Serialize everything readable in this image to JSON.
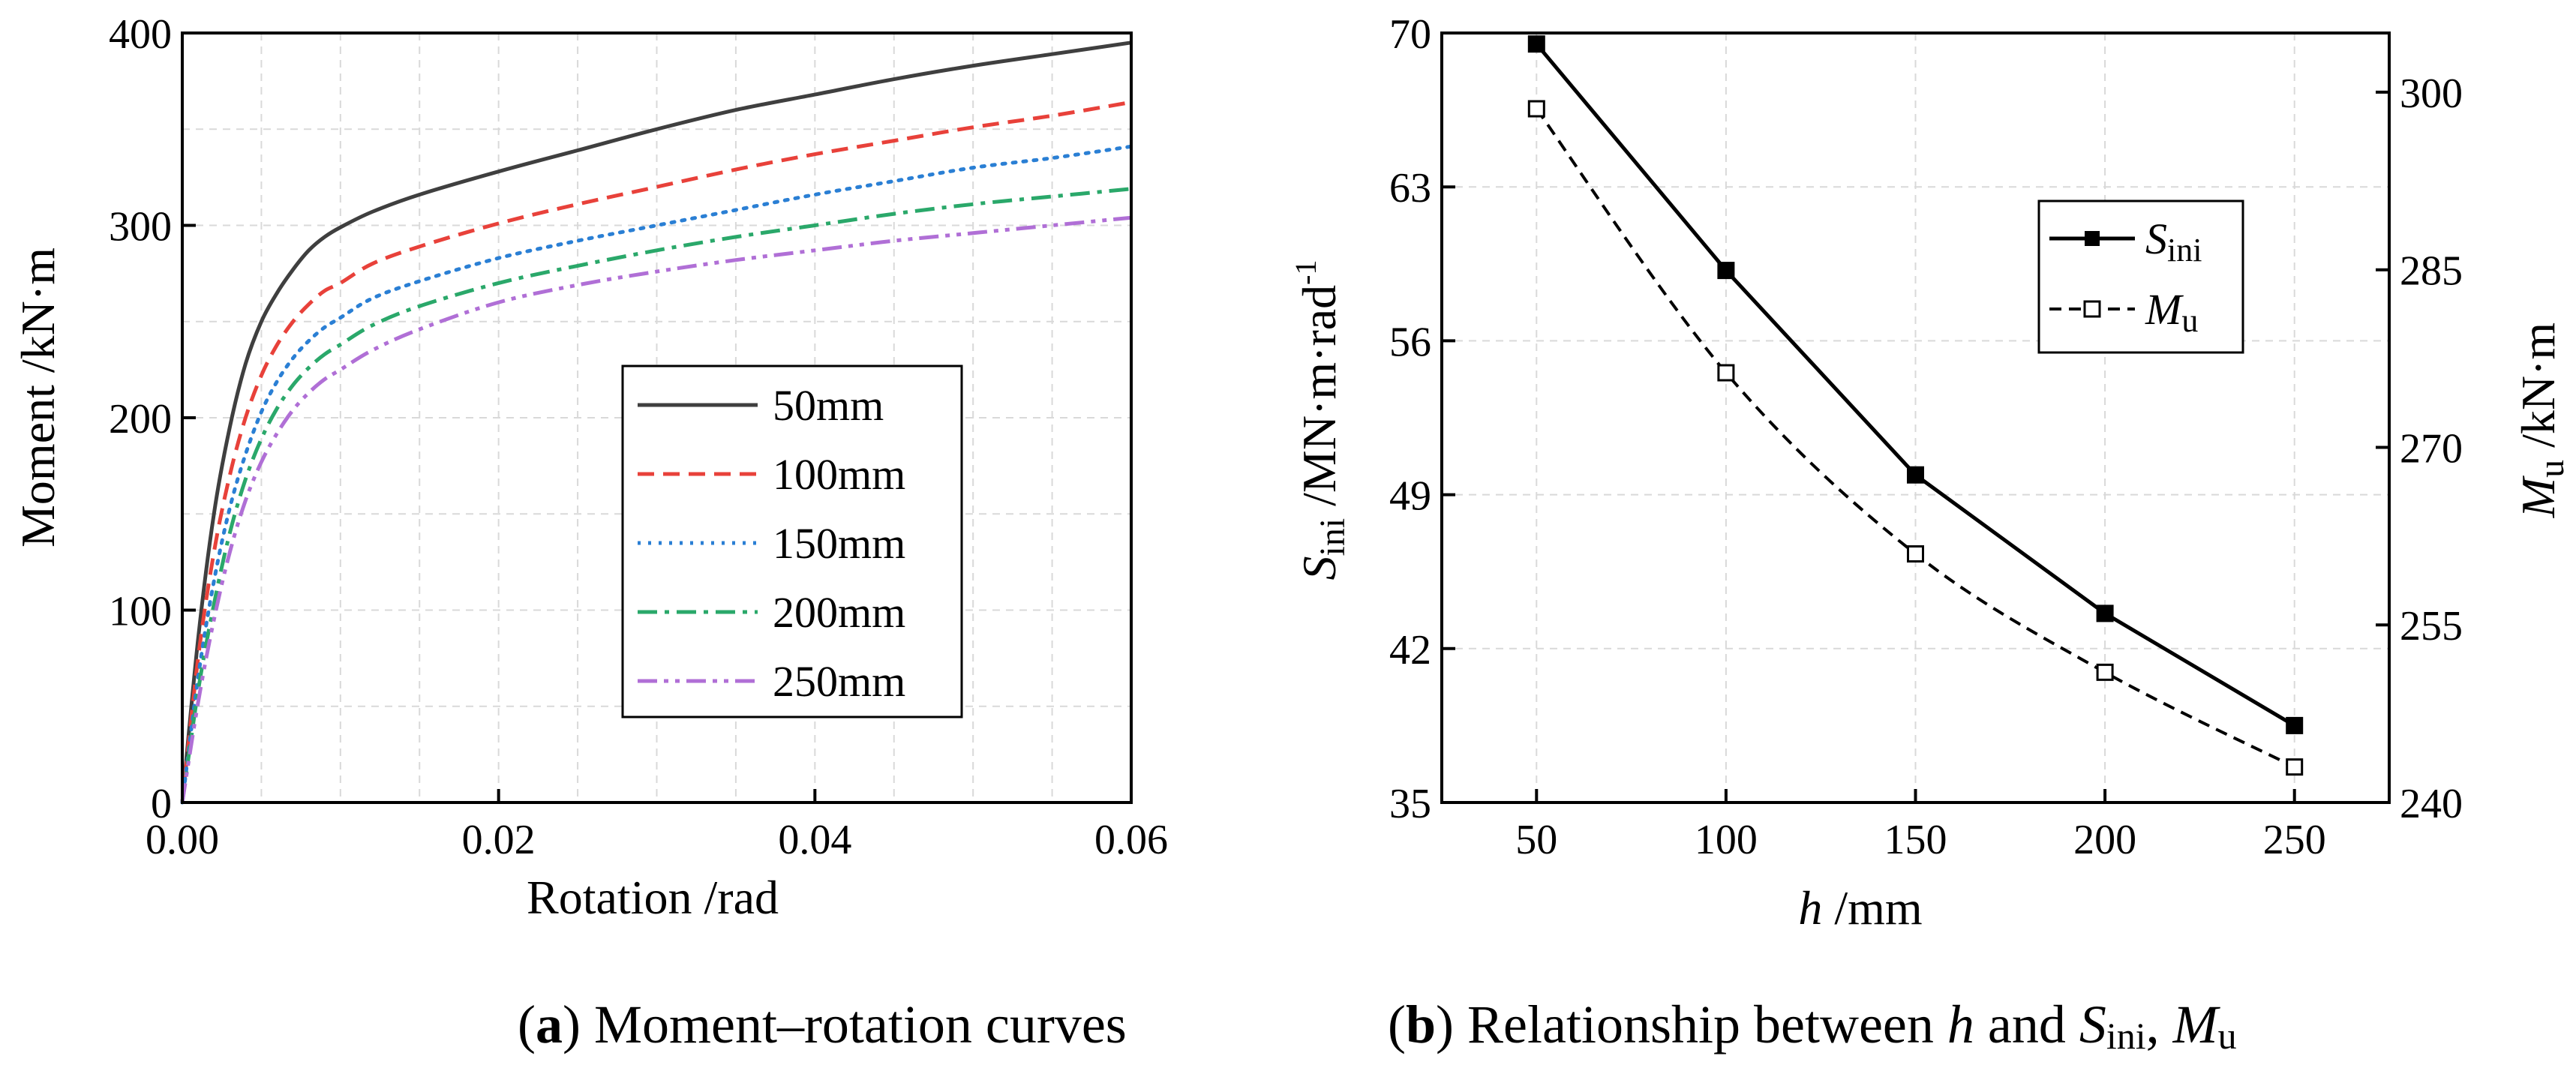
{
  "chart_data": [
    {
      "type": "line",
      "panel_label": "a",
      "caption": "Moment–rotation curves",
      "xlabel": "Rotation /rad",
      "ylabel": "Moment /kN·m",
      "xlim": [
        0,
        0.06
      ],
      "ylim": [
        0,
        400
      ],
      "xticks": [
        "0.00",
        "0.02",
        "0.04",
        "0.06"
      ],
      "yticks": [
        "0",
        "100",
        "200",
        "300",
        "400"
      ],
      "grid": true,
      "legend_position": "center-right",
      "series": [
        {
          "name": "50mm",
          "color": "#3f3f3f",
          "dash": "solid",
          "x": [
            0,
            0.001,
            0.002,
            0.003,
            0.004,
            0.005,
            0.006,
            0.007,
            0.008,
            0.009,
            0.01,
            0.012,
            0.015,
            0.02,
            0.025,
            0.03,
            0.035,
            0.04,
            0.045,
            0.05,
            0.055,
            0.06
          ],
          "y": [
            0,
            85,
            150,
            195,
            228,
            250,
            265,
            277,
            287,
            294,
            299,
            307,
            316,
            328,
            339,
            350,
            360,
            368,
            376,
            383,
            389,
            395
          ]
        },
        {
          "name": "100mm",
          "color": "#e8413a",
          "dash": "dashed",
          "x": [
            0,
            0.001,
            0.002,
            0.003,
            0.004,
            0.005,
            0.006,
            0.007,
            0.008,
            0.009,
            0.01,
            0.012,
            0.015,
            0.02,
            0.025,
            0.03,
            0.035,
            0.04,
            0.045,
            0.05,
            0.055,
            0.06
          ],
          "y": [
            0,
            75,
            130,
            170,
            200,
            222,
            238,
            250,
            259,
            266,
            270,
            280,
            289,
            301,
            311,
            320,
            329,
            337,
            344,
            351,
            357,
            364
          ]
        },
        {
          "name": "150mm",
          "color": "#2a7fd4",
          "dash": "dotted",
          "x": [
            0,
            0.001,
            0.002,
            0.003,
            0.004,
            0.005,
            0.006,
            0.007,
            0.008,
            0.009,
            0.01,
            0.012,
            0.015,
            0.02,
            0.025,
            0.03,
            0.035,
            0.04,
            0.045,
            0.05,
            0.055,
            0.06
          ],
          "y": [
            0,
            65,
            115,
            153,
            181,
            203,
            219,
            231,
            240,
            247,
            252,
            262,
            271,
            283,
            292,
            300,
            308,
            316,
            323,
            330,
            335,
            341
          ]
        },
        {
          "name": "200mm",
          "color": "#2aa86a",
          "dash": "dashdot",
          "x": [
            0,
            0.001,
            0.002,
            0.003,
            0.004,
            0.005,
            0.006,
            0.007,
            0.008,
            0.009,
            0.01,
            0.012,
            0.015,
            0.02,
            0.025,
            0.03,
            0.035,
            0.04,
            0.045,
            0.05,
            0.055,
            0.06
          ],
          "y": [
            0,
            58,
            103,
            140,
            168,
            189,
            205,
            217,
            226,
            233,
            238,
            248,
            258,
            270,
            279,
            287,
            294,
            300,
            306,
            311,
            315,
            319
          ]
        },
        {
          "name": "250mm",
          "color": "#b06fd6",
          "dash": "dashdotdot",
          "x": [
            0,
            0.001,
            0.002,
            0.003,
            0.004,
            0.005,
            0.006,
            0.007,
            0.008,
            0.009,
            0.01,
            0.012,
            0.015,
            0.02,
            0.025,
            0.03,
            0.035,
            0.04,
            0.045,
            0.05,
            0.055,
            0.06
          ],
          "y": [
            0,
            52,
            95,
            130,
            157,
            177,
            192,
            204,
            213,
            220,
            225,
            235,
            246,
            260,
            269,
            276,
            282,
            287,
            292,
            296,
            300,
            304
          ]
        }
      ]
    },
    {
      "type": "line",
      "panel_label": "b",
      "caption_prefix": "Relationship between",
      "caption_h": "h",
      "caption_and": "and",
      "caption_s": "S",
      "caption_s_sub": "ini",
      "caption_sep": ",",
      "caption_m": "M",
      "caption_m_sub": "u",
      "xlabel_italic": "h",
      "xlabel_unit": "/mm",
      "ylabel_left_main": "S",
      "ylabel_left_sub": "ini",
      "ylabel_left_unit": "/MN·m·rad",
      "ylabel_left_sup": "-1",
      "ylabel_right_main": "M",
      "ylabel_right_sub": "u",
      "ylabel_right_unit": "/kN·m",
      "x": [
        50,
        100,
        150,
        200,
        250
      ],
      "xlim": [
        25,
        275
      ],
      "xticks": [
        "50",
        "100",
        "150",
        "200",
        "250"
      ],
      "ylim_left": [
        35,
        70
      ],
      "yticks_left": [
        "35",
        "42",
        "49",
        "56",
        "63",
        "70"
      ],
      "ylim_right": [
        240,
        305
      ],
      "yticks_right": [
        "240",
        "255",
        "270",
        "285",
        "300"
      ],
      "grid": true,
      "legend_position": "top-right",
      "series": [
        {
          "name_main": "S",
          "name_sub": "ini",
          "axis": "left",
          "dash": "solid",
          "marker": "filled-square",
          "values": [
            69.5,
            59.2,
            49.9,
            43.6,
            38.5
          ]
        },
        {
          "name_main": "M",
          "name_sub": "u",
          "axis": "right",
          "dash": "dashed",
          "marker": "open-square",
          "values": [
            298.6,
            276.3,
            261.0,
            251.0,
            243.0
          ]
        }
      ]
    }
  ]
}
